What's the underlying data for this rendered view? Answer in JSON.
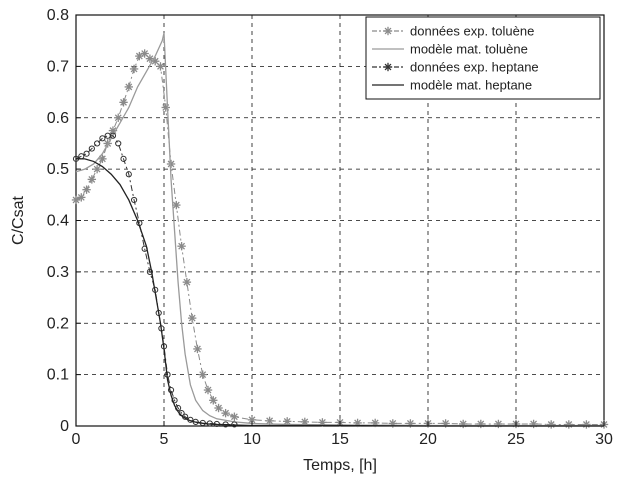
{
  "chart_data": {
    "type": "line",
    "title": "",
    "xlabel": "Temps, [h]",
    "ylabel": "C/Csat",
    "xlim": [
      0,
      30
    ],
    "ylim": [
      0,
      0.8
    ],
    "xticks": [
      "0",
      "5",
      "10",
      "15",
      "20",
      "25",
      "30"
    ],
    "yticks": [
      "0",
      "0.1",
      "0.2",
      "0.3",
      "0.4",
      "0.5",
      "0.6",
      "0.7",
      "0.8"
    ],
    "grid": true,
    "legend_position": "top-right",
    "series": [
      {
        "name": "données exp. toluène",
        "style": "dash-dot with asterisk markers",
        "color": "#8a8a8a",
        "x": [
          0,
          0.3,
          0.6,
          0.9,
          1.2,
          1.5,
          1.8,
          2.1,
          2.4,
          2.7,
          3.0,
          3.3,
          3.6,
          3.9,
          4.2,
          4.5,
          4.8,
          5.1,
          5.4,
          5.7,
          6.0,
          6.3,
          6.6,
          6.9,
          7.2,
          7.5,
          7.8,
          8.1,
          8.5,
          9,
          10,
          11,
          12,
          13,
          14,
          15,
          16,
          17,
          18,
          19,
          20,
          21,
          22,
          23,
          24,
          25,
          26,
          27,
          28,
          29,
          30
        ],
        "y": [
          0.44,
          0.445,
          0.46,
          0.48,
          0.5,
          0.52,
          0.55,
          0.575,
          0.6,
          0.63,
          0.66,
          0.695,
          0.72,
          0.725,
          0.715,
          0.71,
          0.7,
          0.62,
          0.51,
          0.43,
          0.35,
          0.28,
          0.21,
          0.15,
          0.1,
          0.07,
          0.05,
          0.035,
          0.025,
          0.018,
          0.012,
          0.01,
          0.009,
          0.008,
          0.007,
          0.007,
          0.006,
          0.006,
          0.005,
          0.005,
          0.005,
          0.005,
          0.004,
          0.004,
          0.004,
          0.004,
          0.004,
          0.003,
          0.003,
          0.003,
          0.003
        ]
      },
      {
        "name": "modèle mat. toluène",
        "style": "solid",
        "color": "#9a9a9a",
        "x": [
          0,
          0.5,
          1,
          1.5,
          2,
          2.5,
          3,
          3.5,
          4,
          4.5,
          4.9,
          5.0,
          5.2,
          5.4,
          5.6,
          5.8,
          6.0,
          6.2,
          6.5,
          6.8,
          7.2,
          7.6,
          8,
          9,
          10,
          12,
          15,
          20,
          25,
          30
        ],
        "y": [
          0.495,
          0.5,
          0.51,
          0.53,
          0.56,
          0.59,
          0.62,
          0.66,
          0.69,
          0.72,
          0.75,
          0.765,
          0.62,
          0.48,
          0.38,
          0.28,
          0.2,
          0.14,
          0.08,
          0.05,
          0.03,
          0.02,
          0.014,
          0.008,
          0.005,
          0.003,
          0.002,
          0.001,
          0.001,
          0.001
        ]
      },
      {
        "name": "données exp. heptane",
        "style": "dash-dot with circle markers",
        "color": "#333333",
        "x": [
          0,
          0.3,
          0.6,
          0.9,
          1.2,
          1.5,
          1.8,
          2.1,
          2.4,
          2.7,
          3.0,
          3.3,
          3.6,
          3.9,
          4.2,
          4.5,
          4.7,
          4.85,
          5.0,
          5.2,
          5.4,
          5.6,
          5.8,
          6.0,
          6.2,
          6.5,
          6.8,
          7.2,
          7.6,
          8,
          8.5,
          9
        ],
        "y": [
          0.52,
          0.525,
          0.53,
          0.54,
          0.55,
          0.56,
          0.565,
          0.565,
          0.55,
          0.52,
          0.49,
          0.44,
          0.395,
          0.345,
          0.3,
          0.265,
          0.22,
          0.19,
          0.155,
          0.1,
          0.07,
          0.05,
          0.035,
          0.025,
          0.018,
          0.012,
          0.008,
          0.006,
          0.005,
          0.004,
          0.003,
          0.003
        ]
      },
      {
        "name": "modèle mat. heptane",
        "style": "solid",
        "color": "#222222",
        "x": [
          0,
          0.5,
          1,
          1.5,
          2,
          2.5,
          3,
          3.5,
          4,
          4.3,
          4.6,
          4.8,
          5.0,
          5.2,
          5.4,
          5.6,
          5.8,
          6.0,
          6.3,
          6.6,
          7,
          7.5,
          8,
          9,
          10,
          12,
          15,
          20,
          25,
          30
        ],
        "y": [
          0.52,
          0.52,
          0.515,
          0.505,
          0.49,
          0.47,
          0.44,
          0.4,
          0.35,
          0.3,
          0.24,
          0.2,
          0.15,
          0.09,
          0.06,
          0.04,
          0.028,
          0.02,
          0.013,
          0.009,
          0.006,
          0.004,
          0.003,
          0.002,
          0.001,
          0.001,
          0.001,
          0.0,
          0.0,
          0.0
        ]
      }
    ]
  }
}
